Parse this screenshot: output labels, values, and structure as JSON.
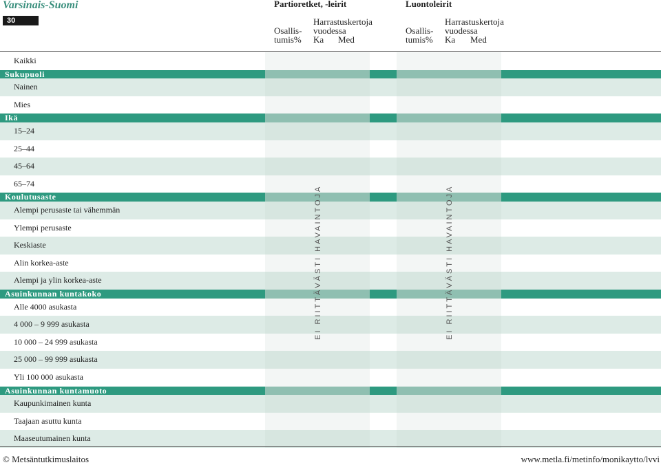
{
  "header": {
    "region": "Varsinais-Suomi",
    "page_number": "30",
    "groups": [
      {
        "title": "Partioretket, -leirit",
        "participation_label": [
          "Osallis-",
          "tumis%"
        ],
        "frequency_label": [
          "Harrastuskertoja",
          "vuodessa"
        ],
        "ka": "Ka",
        "med": "Med"
      },
      {
        "title": "Luontoleirit",
        "participation_label": [
          "Osallis-",
          "tumis%"
        ],
        "frequency_label": [
          "Harrastuskertoja",
          "vuodessa"
        ],
        "ka": "Ka",
        "med": "Med"
      }
    ]
  },
  "rows": [
    {
      "type": "item",
      "label": "Kaikki"
    },
    {
      "type": "section",
      "label": "Sukupuoli"
    },
    {
      "type": "item",
      "label": "Nainen"
    },
    {
      "type": "item",
      "label": "Mies"
    },
    {
      "type": "section",
      "label": "Ikä"
    },
    {
      "type": "item",
      "label": "15–24"
    },
    {
      "type": "item",
      "label": "25–44"
    },
    {
      "type": "item",
      "label": "45–64"
    },
    {
      "type": "item",
      "label": "65–74"
    },
    {
      "type": "section",
      "label": "Koulutusaste"
    },
    {
      "type": "item",
      "label": "Alempi perusaste tai vähemmän"
    },
    {
      "type": "item",
      "label": "Ylempi perusaste"
    },
    {
      "type": "item",
      "label": "Keskiaste"
    },
    {
      "type": "item",
      "label": "Alin korkea-aste"
    },
    {
      "type": "item",
      "label": "Alempi ja ylin korkea-aste"
    },
    {
      "type": "section",
      "label": "Asuinkunnan kuntakoko"
    },
    {
      "type": "item",
      "label": "Alle 4000 asukasta"
    },
    {
      "type": "item",
      "label": "4 000 – 9 999 asukasta"
    },
    {
      "type": "item",
      "label": "10 000 – 24 999 asukasta"
    },
    {
      "type": "item",
      "label": "25 000 – 99 999 asukasta"
    },
    {
      "type": "item",
      "label": "Yli 100 000 asukasta"
    },
    {
      "type": "section",
      "label": "Asuinkunnan kuntamuoto"
    },
    {
      "type": "item",
      "label": "Kaupunkimainen kunta"
    },
    {
      "type": "item",
      "label": "Taajaan asuttu kunta"
    },
    {
      "type": "item",
      "label": "Maaseutumainen kunta"
    }
  ],
  "no_data_text": "EI RIITTÄVÄSTI HAVAINTOJA",
  "footer": {
    "left": "© Metsäntutkimuslaitos",
    "right": "www.metla.fi/metinfo/monikaytto/lvvi"
  },
  "colors": {
    "section_dark": "#2e9a80",
    "section_light": "#8fbfb1",
    "band": "#ddebe6",
    "col_light": "#f3f6f5",
    "col_band": "#d7e6e0",
    "region_title": "#3a8f7d"
  }
}
